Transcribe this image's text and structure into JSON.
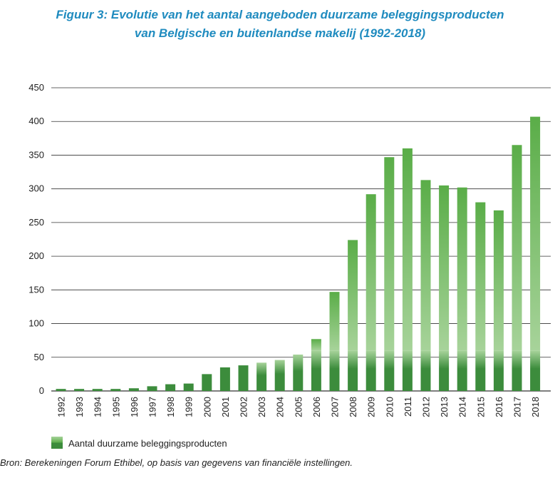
{
  "title": {
    "line1": "Figuur 3: Evolutie van het aantal aangeboden duurzame beleggingsproducten",
    "line2": "van Belgische en buitenlandse makelij (1992-2018)"
  },
  "source": "Bron: Berekeningen Forum Ethibel, op basis van gegevens van financiële instellingen.",
  "colors": {
    "dark": "#3c8c3c",
    "light_top": "#5aad48",
    "light_mid": "#a7d39a",
    "grid": "#333333"
  },
  "chart_data": {
    "type": "bar",
    "title": "Figuur 3: Evolutie van het aantal aangeboden duurzame beleggingsproducten van Belgische en buitenlandse makelij (1992-2018)",
    "xlabel": "",
    "ylabel": "",
    "ylim": [
      0,
      450
    ],
    "yticks": [
      0,
      50,
      100,
      150,
      200,
      250,
      300,
      350,
      400,
      450
    ],
    "grid": true,
    "legend": "bottom-left",
    "categories": [
      "1992",
      "1993",
      "1994",
      "1995",
      "1996",
      "1997",
      "1998",
      "1999",
      "2000",
      "2001",
      "2002",
      "2003",
      "2004",
      "2005",
      "2006",
      "2007",
      "2008",
      "2009",
      "2010",
      "2011",
      "2012",
      "2013",
      "2014",
      "2015",
      "2016",
      "2017",
      "2018"
    ],
    "series": [
      {
        "name": "Aantal duurzame beleggingsproducten",
        "values": [
          3,
          3,
          3,
          3,
          4,
          7,
          10,
          11,
          25,
          35,
          38,
          42,
          46,
          54,
          77,
          147,
          224,
          292,
          347,
          360,
          313,
          305,
          302,
          280,
          268,
          365,
          407
        ]
      }
    ]
  }
}
